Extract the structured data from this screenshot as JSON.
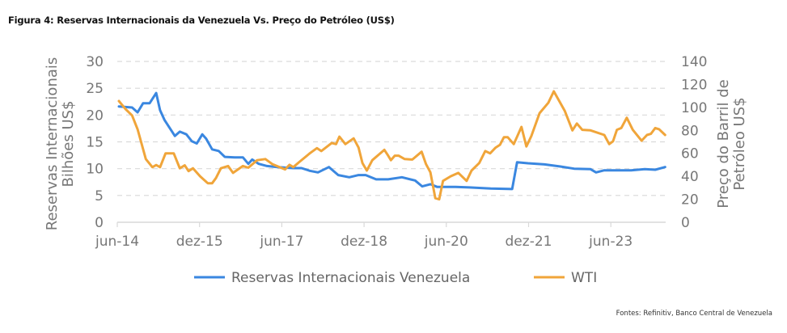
{
  "chart_data": {
    "type": "line",
    "title": "Figura 4: Reservas Internacionais da Venezuela Vs. Preço do Petróleo (US$)",
    "source": "Fontes: Refinitiv, Banco Central de Venezuela",
    "ylabel_left": [
      "Reservas Internacionais",
      "Bilhões US$"
    ],
    "ylabel_right": [
      "Preço do Barril de",
      "Petróleo US$"
    ],
    "ylim_left": [
      0,
      30
    ],
    "ylim_right": [
      0,
      140
    ],
    "yticks_left": [
      "0",
      "5",
      "10",
      "15",
      "20",
      "25",
      "30"
    ],
    "yticks_right": [
      "0",
      "20",
      "40",
      "60",
      "80",
      "100",
      "120",
      "140"
    ],
    "xlim": [
      2014.5,
      2024.5
    ],
    "xticks": [
      {
        "label": "jun-14",
        "x": 2014.5
      },
      {
        "label": "dez-15",
        "x": 2016.0
      },
      {
        "label": "jun-17",
        "x": 2017.5
      },
      {
        "label": "dez-18",
        "x": 2019.0
      },
      {
        "label": "jun-20",
        "x": 2020.5
      },
      {
        "label": "dez-21",
        "x": 2022.0
      },
      {
        "label": "jun-23",
        "x": 2023.5
      }
    ],
    "grid": true,
    "legend": "bottom",
    "series": [
      {
        "name": "Reservas Internacionais Venezuela",
        "axis": "left",
        "color": "#3a87e0",
        "points": [
          [
            2014.53,
            21.6
          ],
          [
            2014.77,
            21.4
          ],
          [
            2014.87,
            20.5
          ],
          [
            2014.97,
            22.2
          ],
          [
            2015.09,
            22.2
          ],
          [
            2015.21,
            24.1
          ],
          [
            2015.28,
            20.9
          ],
          [
            2015.36,
            19.1
          ],
          [
            2015.55,
            16.1
          ],
          [
            2015.64,
            16.9
          ],
          [
            2015.76,
            16.4
          ],
          [
            2015.86,
            15.1
          ],
          [
            2015.95,
            14.7
          ],
          [
            2016.05,
            16.4
          ],
          [
            2016.12,
            15.6
          ],
          [
            2016.23,
            13.6
          ],
          [
            2016.35,
            13.3
          ],
          [
            2016.46,
            12.2
          ],
          [
            2016.64,
            12.1
          ],
          [
            2016.79,
            12.1
          ],
          [
            2016.89,
            10.9
          ],
          [
            2016.96,
            11.7
          ],
          [
            2017.08,
            10.9
          ],
          [
            2017.23,
            10.5
          ],
          [
            2017.42,
            10.3
          ],
          [
            2017.71,
            10.1
          ],
          [
            2017.86,
            10.1
          ],
          [
            2018.01,
            9.6
          ],
          [
            2018.16,
            9.3
          ],
          [
            2018.36,
            10.3
          ],
          [
            2018.53,
            8.8
          ],
          [
            2018.73,
            8.4
          ],
          [
            2018.9,
            8.8
          ],
          [
            2019.03,
            8.8
          ],
          [
            2019.22,
            8.0
          ],
          [
            2019.44,
            8.0
          ],
          [
            2019.69,
            8.4
          ],
          [
            2019.93,
            7.8
          ],
          [
            2020.06,
            6.7
          ],
          [
            2020.21,
            7.1
          ],
          [
            2020.33,
            6.6
          ],
          [
            2020.67,
            6.6
          ],
          [
            2020.92,
            6.5
          ],
          [
            2021.31,
            6.3
          ],
          [
            2021.7,
            6.2
          ],
          [
            2021.79,
            11.2
          ],
          [
            2021.99,
            11.0
          ],
          [
            2022.29,
            10.8
          ],
          [
            2022.58,
            10.4
          ],
          [
            2022.83,
            10.0
          ],
          [
            2023.13,
            9.9
          ],
          [
            2023.23,
            9.3
          ],
          [
            2023.38,
            9.7
          ],
          [
            2023.61,
            9.7
          ],
          [
            2023.87,
            9.7
          ],
          [
            2024.12,
            9.9
          ],
          [
            2024.31,
            9.8
          ],
          [
            2024.49,
            10.3
          ]
        ]
      },
      {
        "name": "WTI",
        "axis": "right",
        "color": "#f0a53a",
        "points": [
          [
            2014.53,
            105.5
          ],
          [
            2014.65,
            98.5
          ],
          [
            2014.77,
            93
          ],
          [
            2014.87,
            81
          ],
          [
            2015.02,
            55
          ],
          [
            2015.14,
            48
          ],
          [
            2015.21,
            49.8
          ],
          [
            2015.28,
            48
          ],
          [
            2015.38,
            60
          ],
          [
            2015.53,
            60
          ],
          [
            2015.64,
            47
          ],
          [
            2015.73,
            49.5
          ],
          [
            2015.8,
            44.5
          ],
          [
            2015.88,
            47
          ],
          [
            2016.01,
            40
          ],
          [
            2016.15,
            34
          ],
          [
            2016.23,
            34
          ],
          [
            2016.3,
            38.5
          ],
          [
            2016.39,
            47
          ],
          [
            2016.52,
            49
          ],
          [
            2016.61,
            43
          ],
          [
            2016.79,
            49
          ],
          [
            2016.89,
            47.5
          ],
          [
            2017.05,
            54
          ],
          [
            2017.2,
            55
          ],
          [
            2017.33,
            50.5
          ],
          [
            2017.56,
            46
          ],
          [
            2017.64,
            50
          ],
          [
            2017.71,
            48
          ],
          [
            2017.82,
            52.5
          ],
          [
            2018.01,
            60
          ],
          [
            2018.14,
            64.5
          ],
          [
            2018.22,
            62
          ],
          [
            2018.41,
            69
          ],
          [
            2018.49,
            68
          ],
          [
            2018.55,
            74.5
          ],
          [
            2018.66,
            68
          ],
          [
            2018.81,
            73
          ],
          [
            2018.9,
            65
          ],
          [
            2018.97,
            51.6
          ],
          [
            2019.05,
            45
          ],
          [
            2019.15,
            54
          ],
          [
            2019.37,
            63
          ],
          [
            2019.44,
            58
          ],
          [
            2019.49,
            54
          ],
          [
            2019.56,
            58
          ],
          [
            2019.63,
            58
          ],
          [
            2019.74,
            55
          ],
          [
            2019.88,
            54.6
          ],
          [
            2020.05,
            61.4
          ],
          [
            2020.13,
            50.6
          ],
          [
            2020.21,
            43.5
          ],
          [
            2020.3,
            21
          ],
          [
            2020.37,
            20
          ],
          [
            2020.44,
            36
          ],
          [
            2020.58,
            40
          ],
          [
            2020.72,
            43
          ],
          [
            2020.87,
            36
          ],
          [
            2020.96,
            45
          ],
          [
            2021.1,
            51.6
          ],
          [
            2021.21,
            62
          ],
          [
            2021.3,
            60
          ],
          [
            2021.4,
            65
          ],
          [
            2021.48,
            67.5
          ],
          [
            2021.55,
            74
          ],
          [
            2021.62,
            74
          ],
          [
            2021.73,
            68
          ],
          [
            2021.87,
            83
          ],
          [
            2021.96,
            66
          ],
          [
            2022.05,
            75
          ],
          [
            2022.2,
            95
          ],
          [
            2022.36,
            104
          ],
          [
            2022.46,
            114
          ],
          [
            2022.66,
            97
          ],
          [
            2022.8,
            80
          ],
          [
            2022.88,
            86
          ],
          [
            2022.98,
            80.5
          ],
          [
            2023.13,
            80
          ],
          [
            2023.38,
            76
          ],
          [
            2023.47,
            68
          ],
          [
            2023.54,
            70.5
          ],
          [
            2023.61,
            80.5
          ],
          [
            2023.69,
            82
          ],
          [
            2023.79,
            91
          ],
          [
            2023.9,
            80.5
          ],
          [
            2024.06,
            71
          ],
          [
            2024.16,
            76
          ],
          [
            2024.23,
            77
          ],
          [
            2024.31,
            82
          ],
          [
            2024.38,
            81
          ],
          [
            2024.49,
            76
          ]
        ]
      }
    ]
  }
}
